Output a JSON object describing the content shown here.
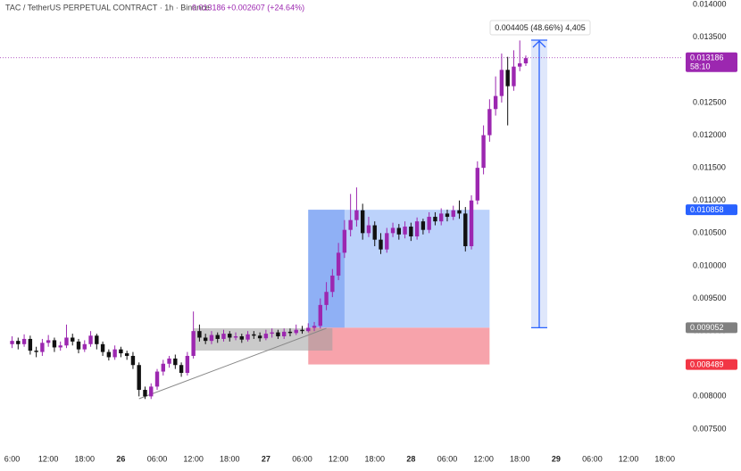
{
  "chart_data": {
    "type": "candlestick",
    "title": "TAC / TetherUS PERPETUAL CONTRACT · 1h · Binance",
    "last_price": "0.013186",
    "change": "+0.002607 (+24.64%)",
    "measurement": "0.004405 (48.66%) 4,405",
    "up_color": "#9c27b0",
    "down_color": "#111111",
    "grid": false,
    "x": [
      0,
      1,
      2,
      3,
      4,
      5,
      6,
      7,
      8,
      9,
      10,
      11,
      12,
      13,
      14,
      15,
      16,
      17,
      18,
      19,
      20,
      21,
      22,
      23,
      24,
      25,
      26,
      27,
      28,
      29,
      30,
      31,
      32,
      33,
      34,
      35,
      36,
      37,
      38,
      39,
      40,
      41,
      42,
      43,
      44,
      45,
      46,
      47,
      48,
      49,
      50,
      51,
      52,
      53,
      54,
      55,
      56,
      57,
      58,
      59,
      60,
      61,
      62,
      63,
      64,
      65,
      66,
      67,
      68,
      69,
      70,
      71,
      72,
      73,
      74,
      75,
      76,
      77,
      78,
      79,
      80,
      81,
      82,
      83,
      84,
      85
    ],
    "open": [
      0.0088,
      0.00885,
      0.0088,
      0.00888,
      0.0087,
      0.00868,
      0.00882,
      0.00886,
      0.00875,
      0.00878,
      0.0089,
      0.00884,
      0.00872,
      0.0088,
      0.00893,
      0.0088,
      0.00868,
      0.0086,
      0.00872,
      0.00866,
      0.00862,
      0.00848,
      0.0081,
      0.008,
      0.00815,
      0.00838,
      0.0085,
      0.00858,
      0.00848,
      0.00836,
      0.00862,
      0.009,
      0.0089,
      0.00885,
      0.00894,
      0.00888,
      0.00896,
      0.0089,
      0.00892,
      0.00887,
      0.00895,
      0.00893,
      0.00889,
      0.00896,
      0.00898,
      0.00892,
      0.00899,
      0.00897,
      0.00902,
      0.009,
      0.00905,
      0.00908,
      0.0094,
      0.0096,
      0.00985,
      0.0102,
      0.01055,
      0.0107,
      0.01085,
      0.0105,
      0.01062,
      0.0104,
      0.01025,
      0.0105,
      0.01058,
      0.01048,
      0.0106,
      0.01045,
      0.01068,
      0.01055,
      0.01075,
      0.01068,
      0.0108,
      0.01075,
      0.01085,
      0.0108,
      0.0103,
      0.011,
      0.0115,
      0.012,
      0.0124,
      0.0126,
      0.013,
      0.01275,
      0.01305,
      0.0131
    ],
    "high": [
      0.00892,
      0.0089,
      0.00895,
      0.00893,
      0.00876,
      0.00888,
      0.00894,
      0.0089,
      0.00884,
      0.0091,
      0.00896,
      0.00888,
      0.00886,
      0.009,
      0.00896,
      0.00884,
      0.00872,
      0.00878,
      0.00876,
      0.0087,
      0.00868,
      0.00852,
      0.00815,
      0.0082,
      0.00842,
      0.00856,
      0.00862,
      0.00864,
      0.00852,
      0.00868,
      0.0093,
      0.0091,
      0.00896,
      0.009,
      0.00898,
      0.00902,
      0.009,
      0.00898,
      0.00896,
      0.009,
      0.009,
      0.00898,
      0.00902,
      0.00904,
      0.00902,
      0.00904,
      0.00904,
      0.0091,
      0.00908,
      0.00912,
      0.00914,
      0.0095,
      0.00975,
      0.00995,
      0.01035,
      0.0107,
      0.0111,
      0.0112,
      0.01095,
      0.01075,
      0.01068,
      0.0105,
      0.01058,
      0.01066,
      0.01064,
      0.01068,
      0.01066,
      0.01074,
      0.01072,
      0.01082,
      0.01082,
      0.01088,
      0.01086,
      0.01092,
      0.011,
      0.0109,
      0.01108,
      0.0116,
      0.01215,
      0.01255,
      0.0129,
      0.01325,
      0.0132,
      0.0133,
      0.01345,
      0.01322
    ],
    "low": [
      0.00874,
      0.00872,
      0.00876,
      0.00864,
      0.0086,
      0.00862,
      0.00876,
      0.00868,
      0.0087,
      0.00874,
      0.00878,
      0.00866,
      0.00868,
      0.00876,
      0.00872,
      0.00862,
      0.00855,
      0.00856,
      0.0086,
      0.00856,
      0.00842,
      0.008,
      0.00796,
      0.00796,
      0.0081,
      0.00832,
      0.00844,
      0.00842,
      0.0083,
      0.00832,
      0.00858,
      0.00884,
      0.0088,
      0.0088,
      0.00882,
      0.00884,
      0.00884,
      0.00886,
      0.00882,
      0.00884,
      0.00888,
      0.00884,
      0.00886,
      0.0089,
      0.00888,
      0.00888,
      0.00892,
      0.00894,
      0.00896,
      0.00898,
      0.009,
      0.00904,
      0.00932,
      0.00952,
      0.00978,
      0.01012,
      0.01045,
      0.0106,
      0.0104,
      0.01044,
      0.0103,
      0.01018,
      0.0102,
      0.01044,
      0.0104,
      0.01042,
      0.01038,
      0.0104,
      0.01048,
      0.0105,
      0.01062,
      0.01062,
      0.01068,
      0.0107,
      0.01072,
      0.01022,
      0.01025,
      0.01094,
      0.0114,
      0.0119,
      0.0123,
      0.0125,
      0.01215,
      0.01268,
      0.01298,
      0.01306
    ],
    "close": [
      0.00885,
      0.0088,
      0.00888,
      0.0087,
      0.00868,
      0.00882,
      0.00886,
      0.00875,
      0.00878,
      0.0089,
      0.00884,
      0.00872,
      0.0088,
      0.00893,
      0.0088,
      0.00868,
      0.0086,
      0.00872,
      0.00866,
      0.00862,
      0.00848,
      0.0081,
      0.008,
      0.00815,
      0.00838,
      0.0085,
      0.00858,
      0.00848,
      0.00836,
      0.00862,
      0.009,
      0.0089,
      0.00885,
      0.00894,
      0.00888,
      0.00896,
      0.0089,
      0.00892,
      0.00887,
      0.00895,
      0.00893,
      0.00889,
      0.00896,
      0.00898,
      0.00892,
      0.00899,
      0.00897,
      0.00902,
      0.009,
      0.00905,
      0.00908,
      0.0094,
      0.0096,
      0.00985,
      0.0102,
      0.01055,
      0.0107,
      0.01085,
      0.0105,
      0.01062,
      0.0104,
      0.01025,
      0.0105,
      0.01058,
      0.01048,
      0.0106,
      0.01045,
      0.01068,
      0.01055,
      0.01075,
      0.01068,
      0.0108,
      0.01075,
      0.01085,
      0.0108,
      0.0103,
      0.011,
      0.0115,
      0.012,
      0.0124,
      0.0126,
      0.013,
      0.01275,
      0.01305,
      0.0131,
      0.01318
    ],
    "xlim": [
      -2,
      111
    ],
    "ylim": [
      0.00724,
      0.01407
    ],
    "xticks": [
      {
        "value": 0,
        "label": "6:00"
      },
      {
        "value": 6,
        "label": "12:00"
      },
      {
        "value": 12,
        "label": "18:00"
      },
      {
        "value": 18,
        "label": "26"
      },
      {
        "value": 24,
        "label": "06:00"
      },
      {
        "value": 30,
        "label": "12:00"
      },
      {
        "value": 36,
        "label": "18:00"
      },
      {
        "value": 42,
        "label": "27"
      },
      {
        "value": 48,
        "label": "06:00"
      },
      {
        "value": 54,
        "label": "12:00"
      },
      {
        "value": 60,
        "label": "18:00"
      },
      {
        "value": 66,
        "label": "28"
      },
      {
        "value": 72,
        "label": "06:00"
      },
      {
        "value": 78,
        "label": "12:00"
      },
      {
        "value": 84,
        "label": "18:00"
      },
      {
        "value": 90,
        "label": "29"
      },
      {
        "value": 96,
        "label": "06:00"
      },
      {
        "value": 102,
        "label": "12:00"
      },
      {
        "value": 108,
        "label": "18:00"
      }
    ],
    "yticks": [
      {
        "value": 0.0075,
        "label": "0.007500"
      },
      {
        "value": 0.008,
        "label": "0.008000"
      },
      {
        "value": 0.0085,
        "label": "0.008500"
      },
      {
        "value": 0.009,
        "label": "0.009000"
      },
      {
        "value": 0.0095,
        "label": "0.009500"
      },
      {
        "value": 0.01,
        "label": "0.010000"
      },
      {
        "value": 0.0105,
        "label": "0.010500"
      },
      {
        "value": 0.011,
        "label": "0.011000"
      },
      {
        "value": 0.0115,
        "label": "0.011500"
      },
      {
        "value": 0.012,
        "label": "0.012000"
      },
      {
        "value": 0.0125,
        "label": "0.012500"
      },
      {
        "value": 0.013,
        "label": "0.013000"
      },
      {
        "value": 0.0135,
        "label": "0.013500"
      },
      {
        "value": 0.014,
        "label": "0.014000"
      }
    ],
    "price_tags": [
      {
        "value": 0.013186,
        "label": "0.013186",
        "sub": "58:10",
        "color": "#9c27b0"
      },
      {
        "value": 0.010858,
        "label": "0.010858",
        "color": "#2962ff"
      },
      {
        "value": 0.009052,
        "label": "0.009052",
        "color": "#808080"
      },
      {
        "value": 0.008489,
        "label": "0.008489",
        "color": "#f23645"
      }
    ]
  }
}
